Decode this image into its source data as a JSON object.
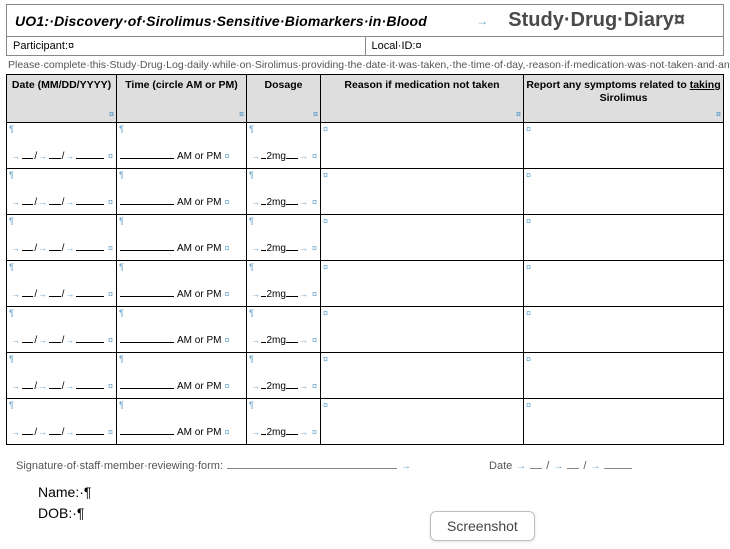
{
  "header": {
    "left_title": "UO1:·Discovery·of·Sirolimus·Sensitive·Biomarkers·in·Blood",
    "right_title": "Study·Drug·Diary¤",
    "participant_label": "Participant:¤",
    "local_id_label": "Local·ID:¤"
  },
  "instructions": "Please·complete·this·Study·Drug·Log·daily·while·on·Sirolimus·providing·the·date·it·was·taken,·the·time·of·day,·reason·if·medication·was·not·taken·and·any·symptoms·related·to·taking·Sirolimus.··Please·report·any·changes·to·dosage·or·if·you·need·to·stop·the·medication.¶",
  "columns": {
    "date": "Date (MM/DD/YYYY)",
    "time": "Time (circle AM or PM)",
    "dosage": "Dosage",
    "reason": "Reason if medication not taken",
    "symptoms_pre": "Report any symptoms related to ",
    "symptoms_link": "taking",
    "symptoms_post": "Sirolimus"
  },
  "row_template": {
    "time_suffix": "AM or PM",
    "dosage_value": "2mg"
  },
  "row_count": 7,
  "signature": {
    "label": "Signature·of·staff·member·reviewing·form:",
    "date_label": "Date"
  },
  "footer": {
    "name_label": "Name:·¶",
    "dob_label": "DOB:·¶"
  },
  "screenshot_button": "Screenshot",
  "marks": {
    "arrow": "→",
    "cell_end": "¤",
    "para": "¶"
  },
  "style": {
    "header_bg": "#dedede",
    "arrow_color": "#6fa6cc",
    "border_color": "#000000",
    "muted_text": "#555555"
  }
}
